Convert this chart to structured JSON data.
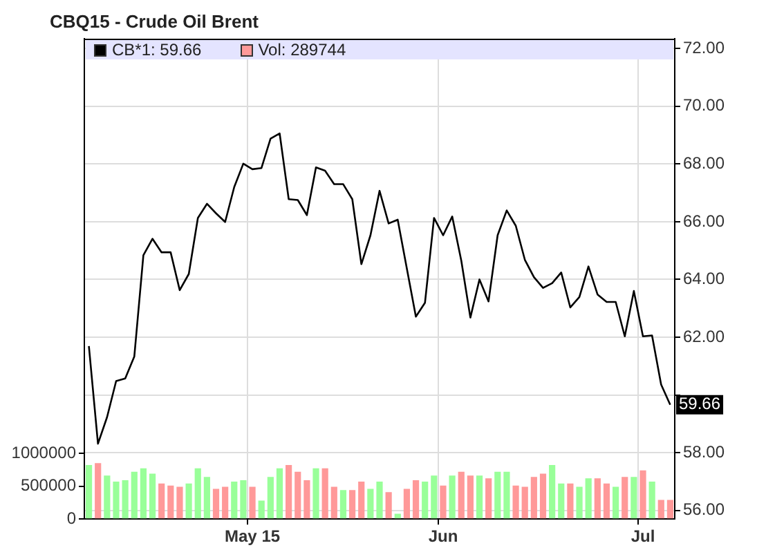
{
  "chart_data": {
    "type": "line",
    "title": "CBQ15 - Crude Oil Brent",
    "categories": [
      null,
      null,
      null,
      null,
      null,
      null,
      null,
      null,
      null,
      null,
      null,
      null,
      null,
      null,
      null,
      null,
      null,
      null,
      "May 15",
      null,
      null,
      null,
      null,
      null,
      null,
      null,
      null,
      null,
      null,
      null,
      null,
      null,
      null,
      null,
      null,
      null,
      null,
      null,
      null,
      "Jun",
      null,
      null,
      null,
      null,
      null,
      null,
      null,
      null,
      null,
      null,
      null,
      null,
      null,
      null,
      null,
      null,
      null,
      null,
      null,
      null,
      null,
      "Jul",
      null,
      null,
      null
    ],
    "series": [
      {
        "name": "CB*1: 59.66",
        "axis": "y",
        "color": "#000000",
        "values": [
          61.69,
          58.31,
          59.23,
          60.48,
          60.57,
          61.33,
          64.84,
          65.41,
          64.94,
          64.94,
          63.63,
          64.19,
          66.13,
          66.62,
          66.29,
          65.99,
          67.2,
          68.01,
          67.82,
          67.86,
          68.88,
          69.06,
          66.78,
          66.75,
          66.23,
          67.88,
          67.77,
          67.3,
          67.3,
          66.78,
          64.53,
          65.53,
          67.07,
          65.94,
          66.07,
          64.39,
          62.71,
          63.19,
          66.13,
          65.53,
          66.18,
          64.65,
          62.68,
          64.0,
          63.24,
          65.53,
          66.39,
          65.86,
          64.68,
          64.08,
          63.71,
          63.87,
          64.24,
          63.03,
          63.39,
          64.45,
          63.48,
          63.22,
          63.22,
          62.03,
          63.6,
          62.03,
          62.06,
          60.36,
          59.66
        ],
        "value_labels": [
          null,
          null,
          null,
          null,
          null,
          null,
          null,
          null,
          null,
          null,
          null,
          null,
          null,
          null,
          null,
          null,
          null,
          null,
          null,
          null,
          null,
          null,
          null,
          null,
          null,
          null,
          null,
          null,
          null,
          null,
          null,
          null,
          null,
          null,
          null,
          null,
          null,
          null,
          null,
          null,
          null,
          null,
          null,
          null,
          null,
          null,
          null,
          null,
          null,
          null,
          null,
          null,
          null,
          null,
          null,
          null,
          null,
          null,
          null,
          null,
          null,
          null,
          null,
          null,
          "59.66"
        ]
      },
      {
        "name": "Vol: 289744",
        "type": "bar",
        "axis": "y2",
        "color": "#ff9999",
        "colors": [
          "#99ff99",
          "#ff9999",
          "#99ff99",
          "#99ff99",
          "#99ff99",
          "#99ff99",
          "#99ff99",
          "#99ff99",
          "#ff9999",
          "#ff9999",
          "#ff9999",
          "#99ff99",
          "#99ff99",
          "#99ff99",
          "#ff9999",
          "#ff9999",
          "#99ff99",
          "#99ff99",
          "#ff9999",
          "#99ff99",
          "#99ff99",
          "#99ff99",
          "#ff9999",
          "#ff9999",
          "#ff9999",
          "#99ff99",
          "#ff9999",
          "#ff9999",
          "#99ff99",
          "#ff9999",
          "#ff9999",
          "#99ff99",
          "#99ff99",
          "#ff9999",
          "#99ff99",
          "#ff9999",
          "#ff9999",
          "#99ff99",
          "#99ff99",
          "#ff9999",
          "#99ff99",
          "#ff9999",
          "#ff9999",
          "#99ff99",
          "#ff9999",
          "#99ff99",
          "#99ff99",
          "#ff9999",
          "#ff9999",
          "#ff9999",
          "#ff9999",
          "#99ff99",
          "#99ff99",
          "#ff9999",
          "#99ff99",
          "#99ff99",
          "#ff9999",
          "#ff9999",
          "#99ff99",
          "#ff9999",
          "#99ff99",
          "#ff9999",
          "#99ff99",
          "#ff9999",
          "#ff9999"
        ],
        "values": [
          820000,
          850000,
          660000,
          570000,
          590000,
          720000,
          770000,
          690000,
          540000,
          510000,
          490000,
          540000,
          770000,
          640000,
          460000,
          490000,
          570000,
          590000,
          490000,
          280000,
          640000,
          770000,
          820000,
          720000,
          590000,
          770000,
          770000,
          490000,
          440000,
          440000,
          570000,
          460000,
          570000,
          410000,
          80000,
          460000,
          590000,
          570000,
          660000,
          510000,
          660000,
          720000,
          660000,
          660000,
          620000,
          720000,
          720000,
          510000,
          490000,
          640000,
          690000,
          820000,
          540000,
          540000,
          490000,
          620000,
          620000,
          540000,
          490000,
          640000,
          640000,
          740000,
          570000,
          290000,
          289744
        ]
      }
    ],
    "ylim": [
      55.7,
      72.34
    ],
    "yticks": [
      {
        "value": 56,
        "label": "56.00"
      },
      {
        "value": 58,
        "label": "58.00"
      },
      {
        "value": 60,
        "label": null
      },
      {
        "value": 62,
        "label": "62.00"
      },
      {
        "value": 64,
        "label": "64.00"
      },
      {
        "value": 66,
        "label": "66.00"
      },
      {
        "value": 68,
        "label": "68.00"
      },
      {
        "value": 70,
        "label": "70.00"
      },
      {
        "value": 72,
        "label": "72.00"
      }
    ],
    "y2lim": [
      0,
      7300000
    ],
    "y2ticks": [
      0,
      500000,
      1000000
    ],
    "grid": true,
    "legend": "top",
    "marker": "none",
    "line_style": "solid"
  }
}
